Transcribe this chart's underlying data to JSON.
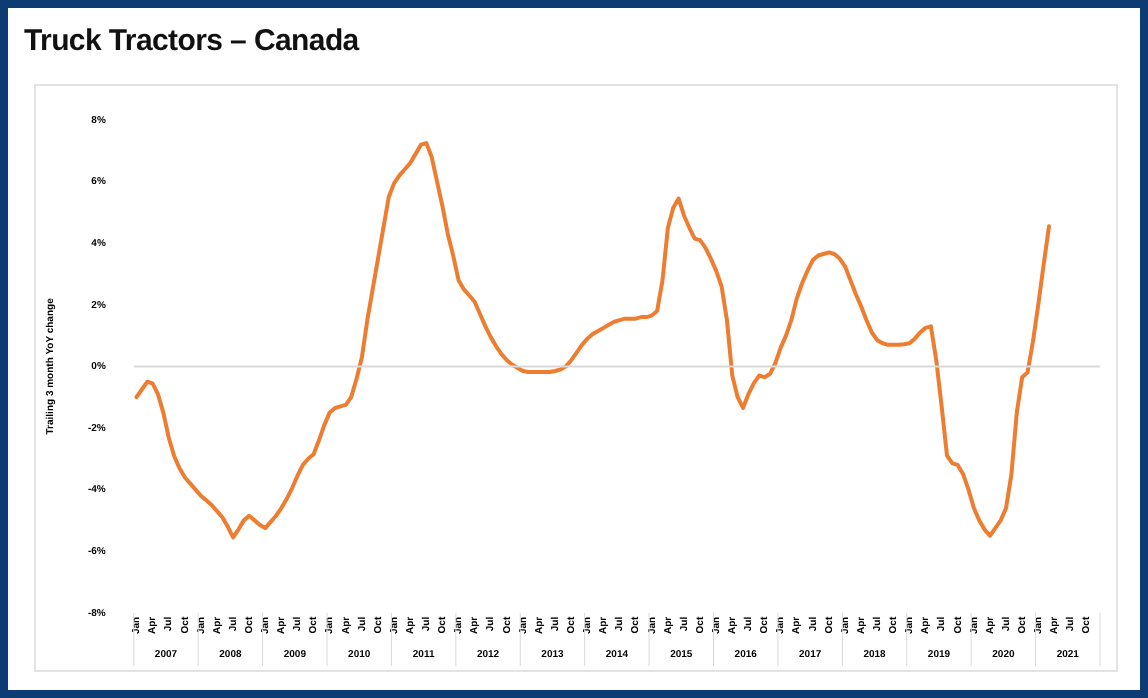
{
  "chart_data": {
    "type": "line",
    "title": "Truck Tractors – Canada",
    "ylabel": "Trailing 3 month YoY change",
    "categories": [
      "Jan",
      null,
      null,
      "Apr",
      null,
      null,
      "Jul",
      null,
      null,
      "Oct",
      null,
      null,
      "Jan",
      null,
      null,
      "Apr",
      null,
      null,
      "Jul",
      null,
      null,
      "Oct",
      null,
      null,
      "Jan",
      null,
      null,
      "Apr",
      null,
      null,
      "Jul",
      null,
      null,
      "Oct",
      null,
      null,
      "Jan",
      null,
      null,
      "Apr",
      null,
      null,
      "Jul",
      null,
      null,
      "Oct",
      null,
      null,
      "Jan",
      null,
      null,
      "Apr",
      null,
      null,
      "Jul",
      null,
      null,
      "Oct",
      null,
      null,
      "Jan",
      null,
      null,
      "Apr",
      null,
      null,
      "Jul",
      null,
      null,
      "Oct",
      null,
      null,
      "Jan",
      null,
      null,
      "Apr",
      null,
      null,
      "Jul",
      null,
      null,
      "Oct",
      null,
      null,
      "Jan",
      null,
      null,
      "Apr",
      null,
      null,
      "Jul",
      null,
      null,
      "Oct",
      null,
      null,
      "Jan",
      null,
      null,
      "Apr",
      null,
      null,
      "Jul",
      null,
      null,
      "Oct",
      null,
      null,
      "Jan",
      null,
      null,
      "Apr",
      null,
      null,
      "Jul",
      null,
      null,
      "Oct",
      null,
      null,
      "Jan",
      null,
      null,
      "Apr",
      null,
      null,
      "Jul",
      null,
      null,
      "Oct",
      null,
      null,
      "Jan",
      null,
      null,
      "Apr",
      null,
      null,
      "Jul",
      null,
      null,
      "Oct",
      null,
      null,
      "Jan",
      null,
      null,
      "Apr",
      null,
      null,
      "Jul",
      null,
      null,
      "Oct",
      null,
      null,
      "Jan",
      null,
      null,
      "Apr",
      null,
      null,
      "Jul",
      null,
      null,
      "Oct",
      null,
      null,
      "Jan",
      null,
      null,
      "Apr",
      null,
      null,
      "Jul",
      null,
      null,
      "Oct",
      null,
      null
    ],
    "series": [
      {
        "color": "#ed7d31",
        "values": [
          -1.0,
          -0.75,
          -0.5,
          -0.55,
          -0.9,
          -1.5,
          -2.3,
          -2.9,
          -3.3,
          -3.6,
          -3.8,
          -4.0,
          -4.2,
          -4.35,
          -4.5,
          -4.7,
          -4.9,
          -5.2,
          -5.55,
          -5.3,
          -5.0,
          -4.85,
          -5.0,
          -5.15,
          -5.25,
          -5.05,
          -4.85,
          -4.6,
          -4.3,
          -3.95,
          -3.55,
          -3.2,
          -3.0,
          -2.85,
          -2.4,
          -1.9,
          -1.5,
          -1.35,
          -1.3,
          -1.25,
          -1.0,
          -0.4,
          0.3,
          1.5,
          2.5,
          3.5,
          4.5,
          5.5,
          5.95,
          6.2,
          6.4,
          6.6,
          6.9,
          7.2,
          7.25,
          6.8,
          6.0,
          5.2,
          4.3,
          3.6,
          2.8,
          2.5,
          2.3,
          2.1,
          1.7,
          1.3,
          0.95,
          0.65,
          0.4,
          0.2,
          0.05,
          -0.05,
          -0.15,
          -0.18,
          -0.18,
          -0.18,
          -0.18,
          -0.18,
          -0.15,
          -0.1,
          0.0,
          0.2,
          0.45,
          0.7,
          0.9,
          1.05,
          1.15,
          1.25,
          1.35,
          1.45,
          1.5,
          1.55,
          1.55,
          1.55,
          1.6,
          1.6,
          1.65,
          1.8,
          2.8,
          4.5,
          5.15,
          5.45,
          4.9,
          4.5,
          4.15,
          4.1,
          3.85,
          3.5,
          3.1,
          2.6,
          1.5,
          -0.3,
          -1.0,
          -1.35,
          -0.9,
          -0.55,
          -0.3,
          -0.35,
          -0.25,
          0.1,
          0.6,
          1.0,
          1.5,
          2.2,
          2.7,
          3.1,
          3.45,
          3.6,
          3.65,
          3.7,
          3.65,
          3.5,
          3.25,
          2.8,
          2.35,
          1.95,
          1.5,
          1.1,
          0.85,
          0.75,
          0.7,
          0.7,
          0.7,
          0.72,
          0.75,
          0.9,
          1.1,
          1.25,
          1.3,
          0.2,
          -1.3,
          -2.9,
          -3.15,
          -3.2,
          -3.5,
          -4.0,
          -4.6,
          -5.0,
          -5.3,
          -5.5,
          -5.25,
          -5.0,
          -4.6,
          -3.5,
          -1.5,
          -0.35,
          -0.2,
          0.8,
          2.0,
          3.3,
          4.55,
          null,
          null,
          null,
          null,
          null,
          null,
          null,
          null,
          null
        ]
      }
    ],
    "ylim": [
      -8,
      8
    ],
    "yticks": [
      {
        "value": -8,
        "label": "-8%"
      },
      {
        "value": -6,
        "label": "-6%"
      },
      {
        "value": -4,
        "label": "-4%"
      },
      {
        "value": -2,
        "label": "-2%"
      },
      {
        "value": 0,
        "label": "0%"
      },
      {
        "value": 2,
        "label": "2%"
      },
      {
        "value": 4,
        "label": "4%"
      },
      {
        "value": 6,
        "label": "6%"
      },
      {
        "value": 8,
        "label": "8%"
      }
    ],
    "ref_lines": [
      {
        "axis": "y",
        "value": 0,
        "color": "#d9d9d9"
      }
    ],
    "annotations": [
      "2007",
      "2008",
      "2009",
      "2010",
      "2011",
      "2012",
      "2013",
      "2014",
      "2015",
      "2016",
      "2017",
      "2018",
      "2019",
      "2020",
      "2021"
    ],
    "grid": false,
    "legend": false,
    "marker": "none",
    "line_style": "solid"
  }
}
